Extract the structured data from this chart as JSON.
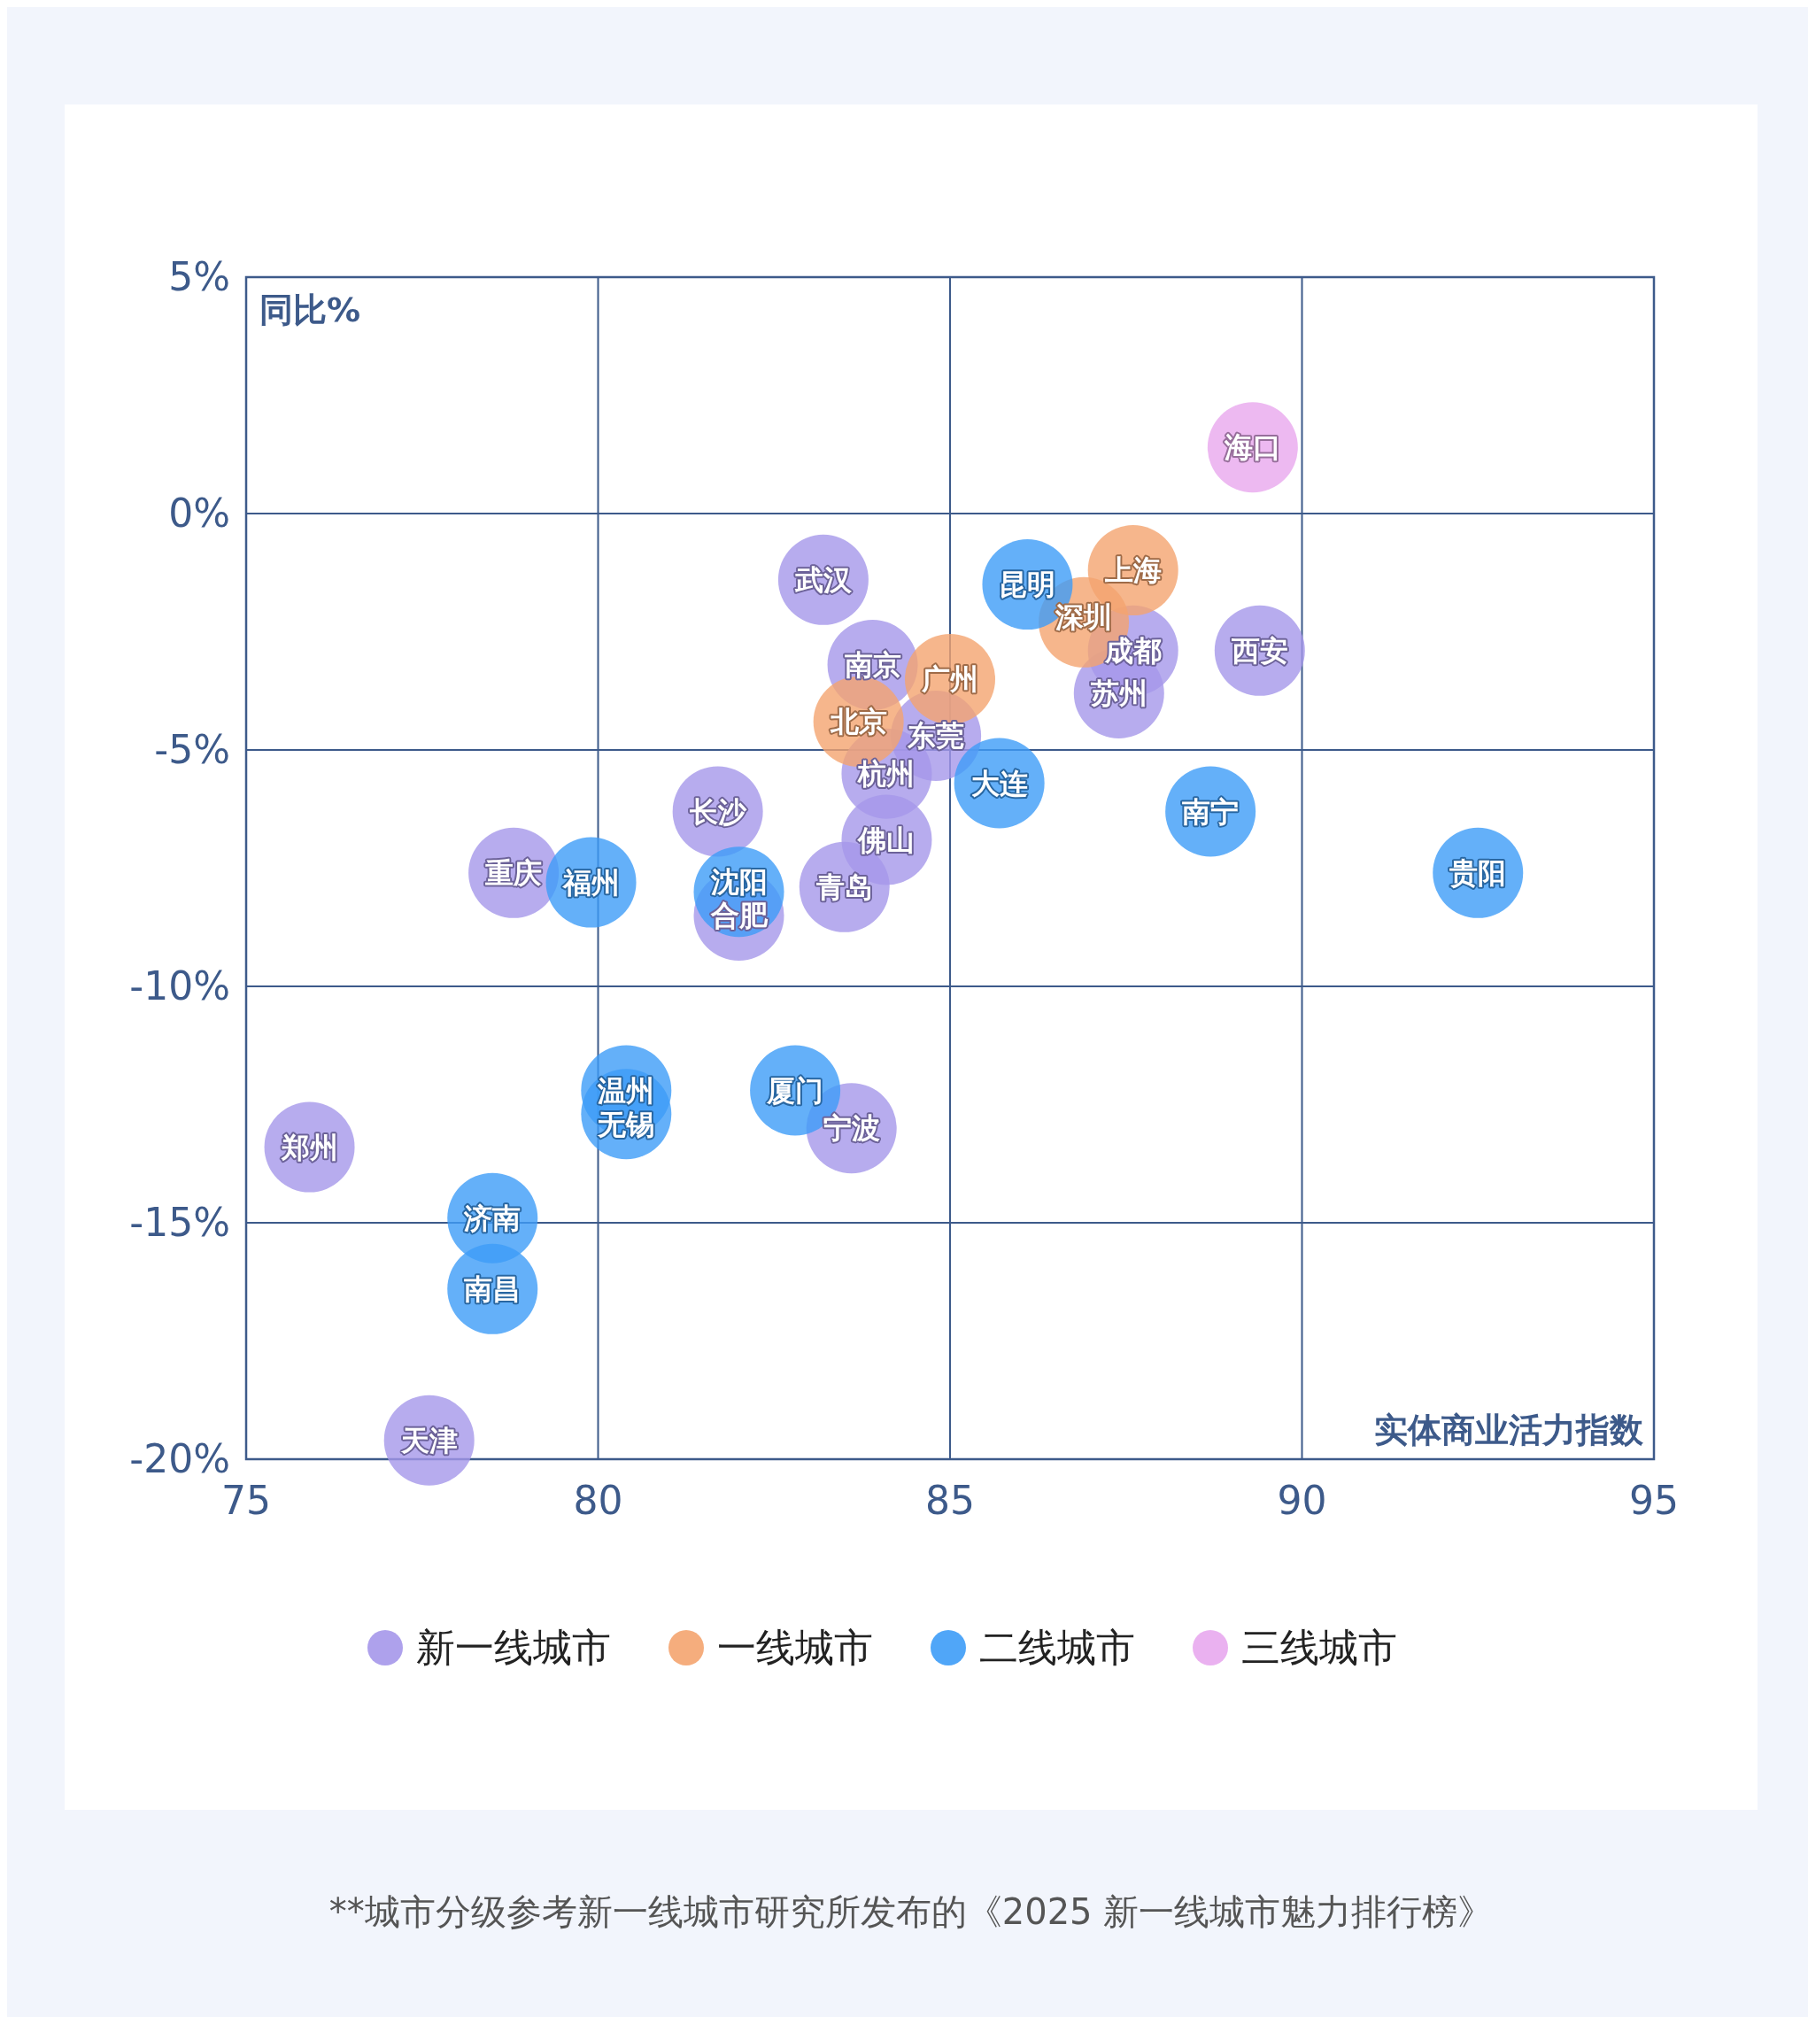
{
  "chart_data": {
    "type": "scatter",
    "xlabel": "实体商业活力指数",
    "ylabel": "同比%",
    "xlim": [
      75,
      95
    ],
    "xticks": [
      75,
      80,
      85,
      90,
      95
    ],
    "ylim": [
      -20,
      5
    ],
    "yticks": [
      {
        "value": -20,
        "label": "-20%"
      },
      {
        "value": -15,
        "label": "-15%"
      },
      {
        "value": -10,
        "label": "-10%"
      },
      {
        "value": -5,
        "label": "-5%"
      },
      {
        "value": 0,
        "label": "0%"
      },
      {
        "value": 5,
        "label": "5%"
      }
    ],
    "grid": true,
    "legend": "bottom",
    "marker": "circle",
    "series": [
      {
        "name": "新一线城市",
        "color": "#a597ea",
        "x": [
          83.2,
          83.9,
          87.6,
          89.4,
          87.4,
          84.8,
          84.1,
          81.7,
          84.1,
          78.8,
          83.5,
          82.0,
          83.6,
          75.9,
          77.6
        ],
        "values": [
          -1.4,
          -3.2,
          -2.9,
          -2.9,
          -3.8,
          -4.7,
          -5.5,
          -6.3,
          -6.9,
          -7.6,
          -7.9,
          -8.5,
          -13.0,
          -13.4,
          -19.6
        ],
        "value_labels": [
          "武汉",
          "南京",
          "成都",
          "西安",
          "苏州",
          "东莞",
          "杭州",
          "长沙",
          "佛山",
          "重庆",
          "青岛",
          "合肥",
          "宁波",
          "郑州",
          "天津"
        ]
      },
      {
        "name": "一线城市",
        "color": "#f4a46f",
        "x": [
          87.6,
          86.9,
          85.0,
          83.7
        ],
        "values": [
          -1.2,
          -2.3,
          -3.5,
          -4.4
        ],
        "value_labels": [
          "上海",
          "深圳",
          "广州",
          "北京"
        ]
      },
      {
        "name": "二线城市",
        "color": "#3d9cf7",
        "x": [
          86.1,
          85.7,
          88.7,
          92.5,
          79.9,
          82.0,
          80.4,
          80.4,
          82.8,
          78.5,
          78.5
        ],
        "values": [
          -1.5,
          -5.7,
          -6.3,
          -7.6,
          -7.8,
          -8.0,
          -12.2,
          -12.7,
          -12.2,
          -14.9,
          -16.4
        ],
        "value_labels": [
          "昆明",
          "大连",
          "南宁",
          "贵阳",
          "福州",
          "沈阳",
          "温州",
          "无锡",
          "厦门",
          "济南",
          "南昌"
        ]
      },
      {
        "name": "三线城市",
        "color": "#e8a8ee",
        "x": [
          89.3
        ],
        "values": [
          1.4
        ],
        "value_labels": [
          "海口"
        ]
      }
    ],
    "annotations": [
      "**城市分级参考新一线城市研究所发布的《2025 新一线城市魅力排行榜》"
    ]
  }
}
